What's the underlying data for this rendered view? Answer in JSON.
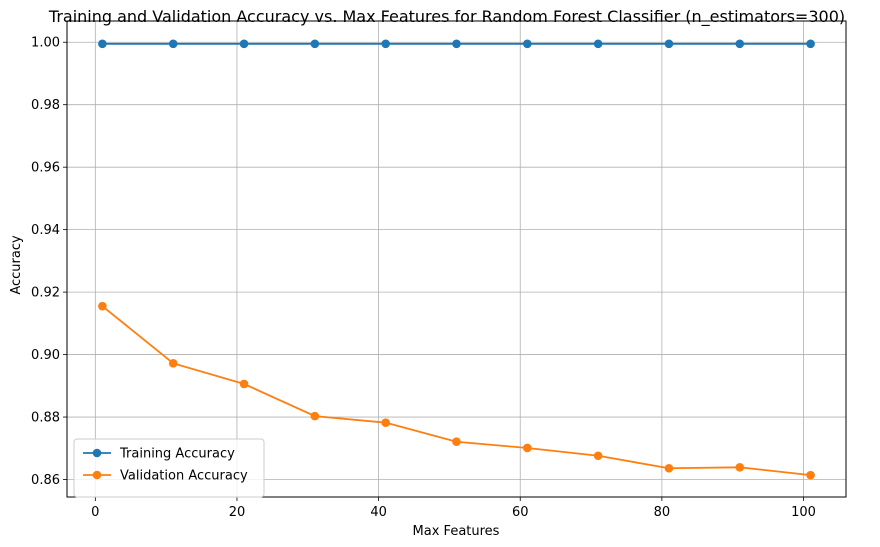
{
  "chart_data": {
    "type": "line",
    "title": "Training and Validation Accuracy vs. Max Features for Random Forest Classifier (n_estimators=300)",
    "xlabel": "Max Features",
    "ylabel": "Accuracy",
    "x": [
      1,
      11,
      21,
      31,
      41,
      51,
      61,
      71,
      81,
      91,
      101
    ],
    "xlim": [
      -4.0,
      106.0
    ],
    "ylim": [
      0.8544,
      1.0068
    ],
    "xticks": [
      "0",
      "20",
      "40",
      "60",
      "80",
      "100"
    ],
    "yticks": [
      "0.86",
      "0.88",
      "0.90",
      "0.92",
      "0.94",
      "0.96",
      "0.98",
      "1.00"
    ],
    "grid": true,
    "legend_position": "lower-left",
    "series": [
      {
        "name": "Training Accuracy",
        "color": "#1f77b4",
        "marker": "circle",
        "values": [
          0.9995,
          0.9995,
          0.9995,
          0.9995,
          0.9995,
          0.9995,
          0.9995,
          0.9995,
          0.9995,
          0.9995,
          0.9995
        ]
      },
      {
        "name": "Validation Accuracy",
        "color": "#ff7f0e",
        "marker": "circle",
        "values": [
          0.9155,
          0.8972,
          0.8906,
          0.8803,
          0.8782,
          0.8721,
          0.8701,
          0.8676,
          0.8636,
          0.8639,
          0.8614
        ]
      }
    ]
  }
}
